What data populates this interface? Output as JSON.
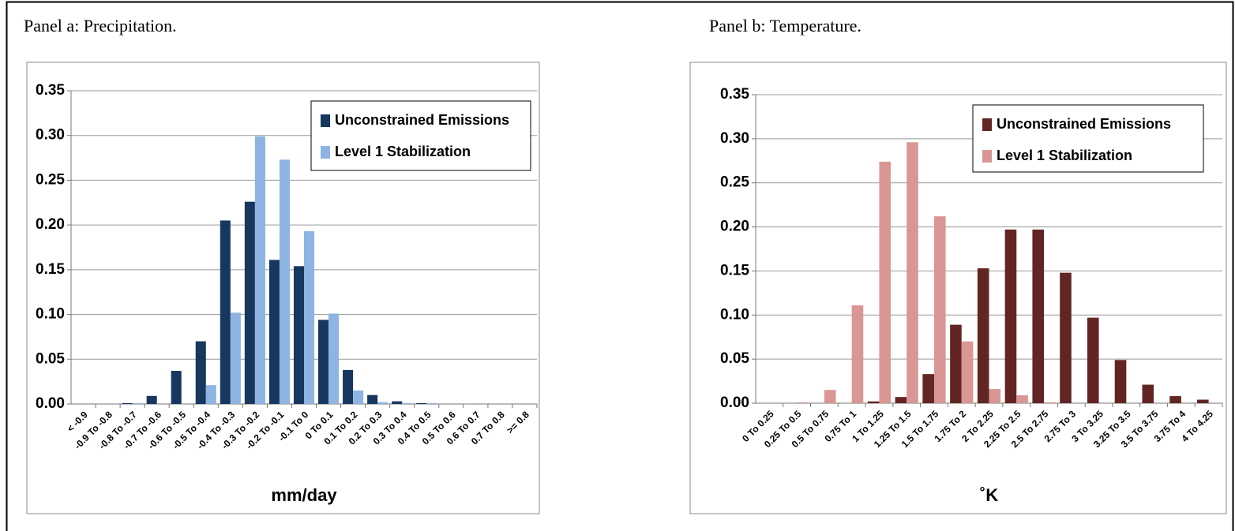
{
  "chart_data": [
    {
      "type": "bar",
      "title": "Panel a: Precipitation.",
      "x_label": "mm/day",
      "categories": [
        "< -0.9",
        "-0.9 To -0.8",
        "-0.8 To -0.7",
        "-0.7 To -0.6",
        "-0.6 To -0.5",
        "-0.5 To -0.4",
        "-0.4 To -0.3",
        "-0.3 To -0.2",
        "-0.2 To -0.1",
        "-0.1 To 0",
        "0 To 0.1",
        "0.1 To 0.2",
        "0.2 To 0.3",
        "0.3 To 0.4",
        "0.4 To 0.5",
        "0.5 To 0.6",
        "0.6 To 0.7",
        "0.7 To 0.8",
        ">= 0.8"
      ],
      "series": [
        {
          "name": "Unconstrained Emissions",
          "color": "#17375e",
          "values": [
            0,
            0,
            0.001,
            0.009,
            0.037,
            0.07,
            0.205,
            0.226,
            0.161,
            0.154,
            0.094,
            0.038,
            0.01,
            0.003,
            0.001,
            0,
            0,
            0,
            0
          ]
        },
        {
          "name": "Level 1 Stabilization",
          "color": "#8db4e2",
          "values": [
            0,
            0,
            0.001,
            0,
            0,
            0.021,
            0.102,
            0.299,
            0.273,
            0.193,
            0.101,
            0.015,
            0.002,
            0.001,
            0.001,
            0,
            0,
            0,
            0
          ]
        }
      ],
      "ylim": [
        0,
        0.35
      ],
      "yticks": [
        {
          "value": 0,
          "label": "0.00"
        },
        0.05,
        {
          "value": 0.1,
          "label": "0.10"
        },
        0.15,
        {
          "value": 0.2,
          "label": "0.20"
        },
        0.25,
        {
          "value": 0.3,
          "label": "0.30"
        },
        0.35
      ],
      "grid": true,
      "legend": "upper right"
    },
    {
      "type": "bar",
      "title": "Panel b: Temperature.",
      "x_label": "˚K",
      "categories": [
        "0 To 0.25",
        "0.25 To 0.5",
        "0.5 To 0.75",
        "0.75 To 1",
        "1 To 1.25",
        "1.25 To 1.5",
        "1.5 To 1.75",
        "1.75 To 2",
        "2 To 2.25",
        "2.25 To 2.5",
        "2.5 To 2.75",
        "2.75 To 3",
        "3 To 3.25",
        "3.25 To 3.5",
        "3.5 To 3.75",
        "3.75 To 4",
        "4 To 4.25"
      ],
      "series": [
        {
          "name": "Unconstrained Emissions",
          "color": "#632523",
          "values": [
            0,
            0,
            0,
            0,
            0.002,
            0.007,
            0.033,
            0.089,
            0.153,
            0.197,
            0.197,
            0.148,
            0.097,
            0.049,
            0.021,
            0.008,
            0.004
          ]
        },
        {
          "name": "Level 1 Stabilization",
          "color": "#d99694",
          "values": [
            0,
            0.001,
            0.015,
            0.111,
            0.274,
            0.296,
            0.212,
            0.07,
            0.016,
            0.009,
            0.001,
            0,
            0,
            0,
            0,
            0,
            0
          ]
        }
      ],
      "ylim": [
        0,
        0.35
      ],
      "yticks": [
        {
          "value": 0,
          "label": "0.00"
        },
        0.05,
        {
          "value": 0.1,
          "label": "0.10"
        },
        0.15,
        {
          "value": 0.2,
          "label": "0.20"
        },
        0.25,
        {
          "value": 0.3,
          "label": "0.30"
        },
        0.35
      ],
      "grid": true,
      "legend": "upper right"
    }
  ]
}
